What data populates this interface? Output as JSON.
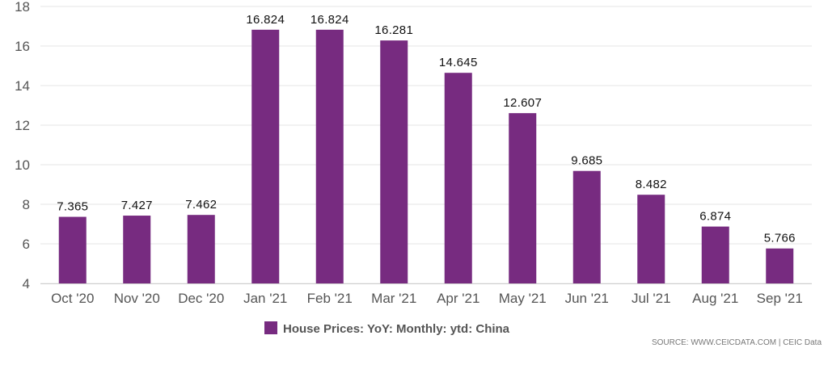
{
  "chart_data": {
    "type": "bar",
    "categories": [
      "Oct '20",
      "Nov '20",
      "Dec '20",
      "Jan '21",
      "Feb '21",
      "Mar '21",
      "Apr '21",
      "May '21",
      "Jun '21",
      "Jul '21",
      "Aug '21",
      "Sep '21"
    ],
    "series": [
      {
        "name": "House Prices: YoY: Monthly: ytd: China",
        "values": [
          7.365,
          7.427,
          7.462,
          16.824,
          16.824,
          16.281,
          14.645,
          12.607,
          9.685,
          8.482,
          6.874,
          5.766
        ],
        "labels": [
          "7.365",
          "7.427",
          "7.462",
          "16.824",
          "16.824",
          "16.281",
          "14.645",
          "12.607",
          "9.685",
          "8.482",
          "6.874",
          "5.766"
        ]
      }
    ],
    "ylim": [
      4,
      18
    ],
    "yticks": [
      4,
      6,
      8,
      10,
      12,
      14,
      16,
      18
    ],
    "grid": true,
    "legend_position": "bottom-center",
    "bar_color": "#772b80",
    "grid_color": "#e6e6e6"
  },
  "source": "SOURCE: WWW.CEICDATA.COM | CEIC Data"
}
